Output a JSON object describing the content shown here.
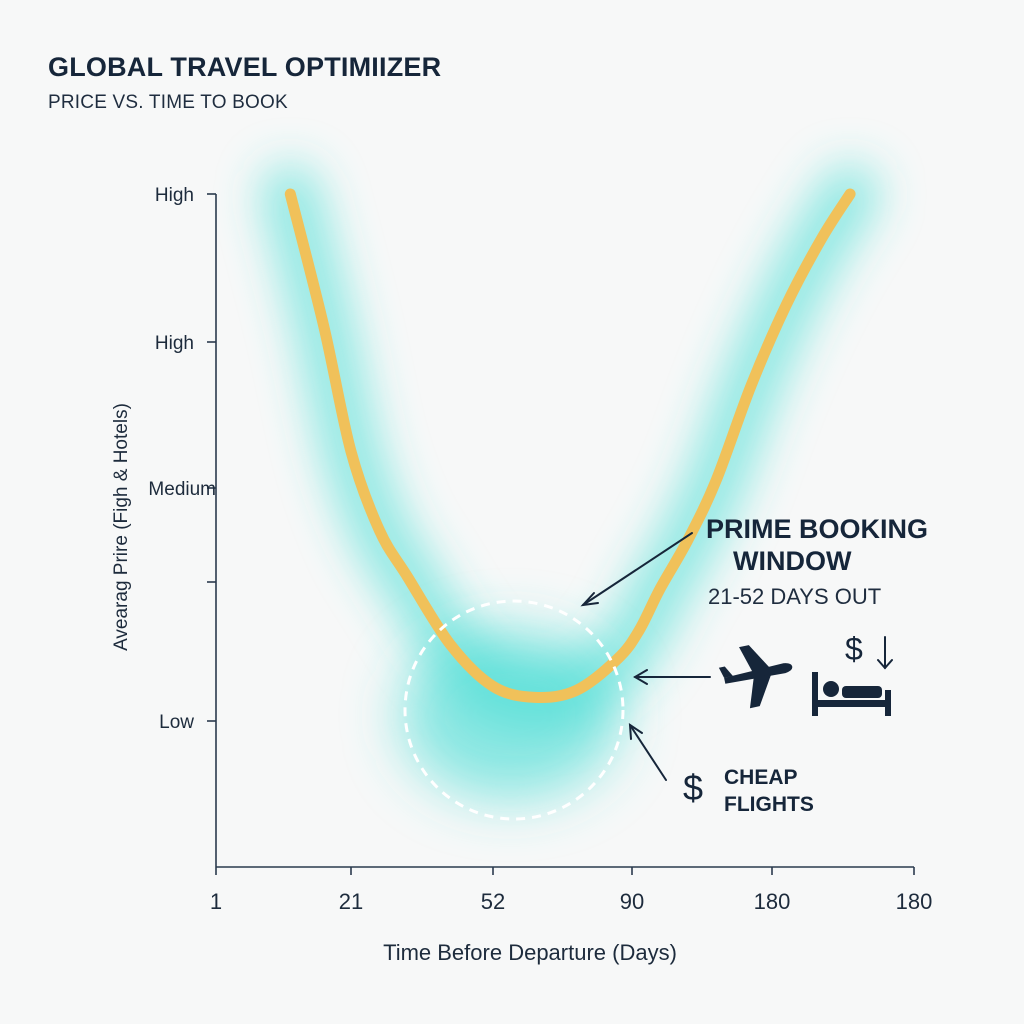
{
  "header": {
    "title": "GLOBAL TRAVEL OPTIMIIZER",
    "subtitle": "PRICE VS. TIME TO BOOK"
  },
  "annotations": {
    "window_title_line1": "PRIME BOOKING",
    "window_title_line2": "WINDOW",
    "window_range": "21-52 DAYS OUT",
    "cheap_line1": "CHEAP",
    "cheap_line2": "FLIGHTS",
    "dollar_symbol": "$",
    "icons": [
      "airplane-icon",
      "bed-icon",
      "dollar-down-icon",
      "dollar-icon"
    ]
  },
  "colors": {
    "curve": "#f0c15a",
    "glow": "#3fdcd3",
    "text": "#16263a",
    "axis": "#2a3a4d",
    "highlight_circle": "#ffffff"
  },
  "chart_data": {
    "type": "line",
    "title": "GLOBAL TRAVEL OPTIMIIZER",
    "subtitle": "PRICE VS. TIME TO BOOK",
    "xlabel": "Time Before Departure (Days)",
    "ylabel": "Avearag Prire (Figh & Hotels)",
    "x_tick_labels": [
      "1",
      "21",
      "52",
      "90",
      "180",
      "180"
    ],
    "y_tick_labels": [
      "High",
      "High",
      "Medium",
      "",
      "Low"
    ],
    "series": [
      {
        "x_position_index": [
          0.55,
          0.8,
          1.0,
          1.2,
          1.4,
          1.7,
          2.0,
          2.3,
          2.6,
          2.9,
          3.05,
          3.2,
          3.4,
          3.6,
          3.85,
          4.1,
          4.35,
          4.55
        ],
        "y_level_index": [
          0.0,
          0.9,
          1.75,
          2.45,
          2.95,
          3.45,
          3.75,
          3.83,
          3.78,
          3.55,
          3.35,
          3.05,
          2.55,
          1.95,
          1.3,
          0.75,
          0.3,
          0.0
        ]
      }
    ],
    "highlight": {
      "label": "PRIME BOOKING WINDOW",
      "range": "21-52 DAYS OUT"
    },
    "grid": false,
    "legend": "none"
  }
}
